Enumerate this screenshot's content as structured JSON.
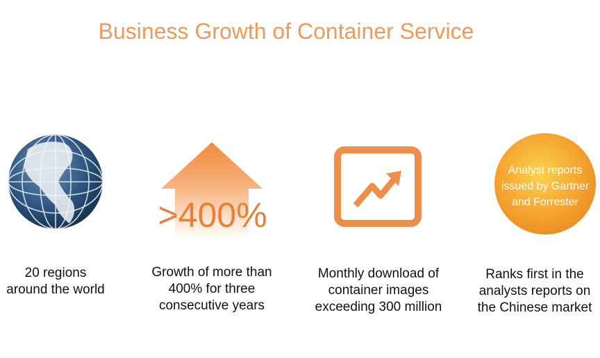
{
  "title": "Business Growth of Container Service",
  "items": [
    {
      "caption": [
        "20 regions",
        "around the world"
      ]
    },
    {
      "badge": [
        ">400%"
      ],
      "caption": [
        "Growth of more than",
        "400% for three",
        "consecutive years"
      ]
    },
    {
      "caption": [
        "Monthly download of",
        "container images",
        "exceeding 300 million"
      ]
    },
    {
      "badge": [
        "Analyst reports",
        "issued by Gartner",
        "and Forrester"
      ],
      "caption": [
        "Ranks first in the",
        "analysts reports on",
        "the Chinese market"
      ]
    }
  ]
}
